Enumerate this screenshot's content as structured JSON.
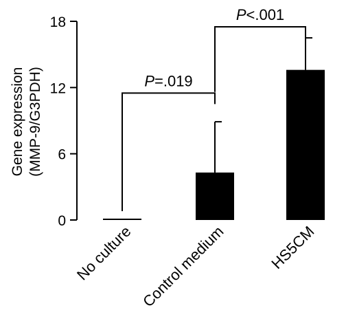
{
  "chart_data": {
    "type": "bar",
    "ylabel_line1": "Gene expression",
    "ylabel_line2": "(MMP-9/G3PDH)",
    "xlabel": "",
    "ylim": [
      0,
      18
    ],
    "yticks": [
      "0",
      "6",
      "12",
      "18"
    ],
    "categories": [
      "No culture",
      "Control medium",
      "HS5CM"
    ],
    "values": [
      0.1,
      4.3,
      13.6
    ],
    "errors": [
      0,
      4.6,
      2.9
    ],
    "bar_color": "#000000",
    "comparisons": [
      {
        "from": 0,
        "to": 1,
        "p_italic": "P",
        "p_text": "=.019",
        "bracket_y": 11.5
      },
      {
        "from": 1,
        "to": 2,
        "p_italic": "P",
        "p_text": "<.001",
        "bracket_y": 17.5
      }
    ]
  }
}
